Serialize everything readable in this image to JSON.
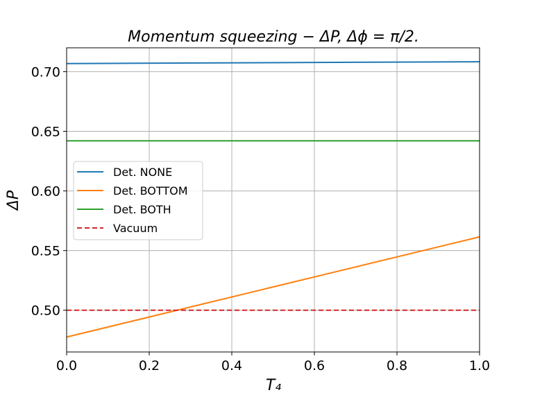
{
  "chart_data": {
    "type": "line",
    "title": "Momentum squeezing − ΔP, Δϕ = π/2.",
    "xlabel": "T₄",
    "ylabel": "ΔP",
    "xlim": [
      0.0,
      1.0
    ],
    "ylim": [
      0.465,
      0.72
    ],
    "x_ticks": [
      "0.0",
      "0.2",
      "0.4",
      "0.6",
      "0.8",
      "1.0"
    ],
    "y_ticks": [
      "0.50",
      "0.55",
      "0.60",
      "0.65",
      "0.70"
    ],
    "grid": true,
    "legend_position": "center-left",
    "series": [
      {
        "name": "Det. NONE",
        "color": "#1f77b4",
        "style": "solid",
        "x": [
          0.0,
          1.0
        ],
        "y": [
          0.7068,
          0.7083
        ]
      },
      {
        "name": "Det. BOTTOM",
        "color": "#ff7f0e",
        "style": "solid",
        "x": [
          0.0,
          1.0
        ],
        "y": [
          0.4775,
          0.5615
        ]
      },
      {
        "name": "Det. BOTH",
        "color": "#2ca02c",
        "style": "solid",
        "x": [
          0.0,
          1.0
        ],
        "y": [
          0.642,
          0.642
        ]
      },
      {
        "name": "Vacuum",
        "color": "#d62728",
        "style": "dashed",
        "x": [
          0.0,
          1.0
        ],
        "y": [
          0.5,
          0.5
        ]
      }
    ]
  }
}
